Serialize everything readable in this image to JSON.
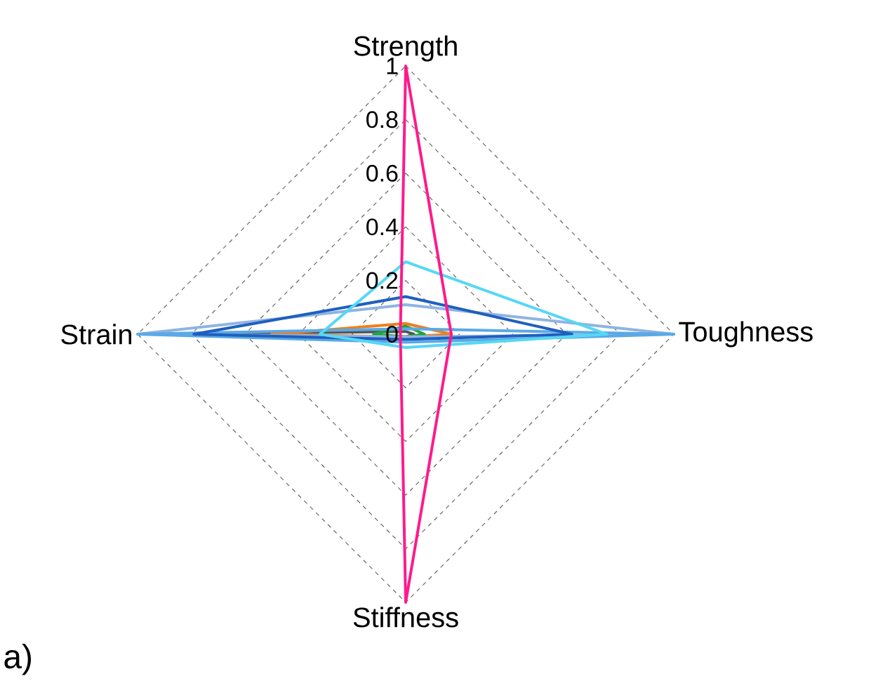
{
  "chart_data": {
    "type": "radar",
    "categories": [
      "Strength",
      "Toughness",
      "Stiffness",
      "Strain"
    ],
    "ylim": [
      0,
      1
    ],
    "yticks": [
      0,
      0.2,
      0.4,
      0.6,
      0.8,
      1
    ],
    "grid": true,
    "line_style": "solid",
    "annotations": [
      "a)"
    ],
    "series": [
      {
        "color": "#555555",
        "values": [
          0.01,
          0.03,
          0.01,
          0.8
        ]
      },
      {
        "color": "#f07f1a",
        "values": [
          0.04,
          0.17,
          0.01,
          0.5
        ]
      },
      {
        "color": "#22a33a",
        "values": [
          0.03,
          0.07,
          0.01,
          0.12
        ]
      },
      {
        "color": "#8fb4e3",
        "values": [
          0.11,
          1,
          0.01,
          1
        ]
      },
      {
        "color": "#5aa9e6",
        "values": [
          0.02,
          1,
          0.03,
          1
        ]
      },
      {
        "color": "#1f5fbf",
        "values": [
          0.14,
          0.62,
          0.02,
          0.79
        ]
      },
      {
        "color": "#55d8f5",
        "values": [
          0.27,
          0.75,
          0.05,
          0.32
        ]
      },
      {
        "color": "#ff1a8c",
        "values": [
          1,
          0.17,
          1,
          0.02
        ]
      }
    ]
  }
}
